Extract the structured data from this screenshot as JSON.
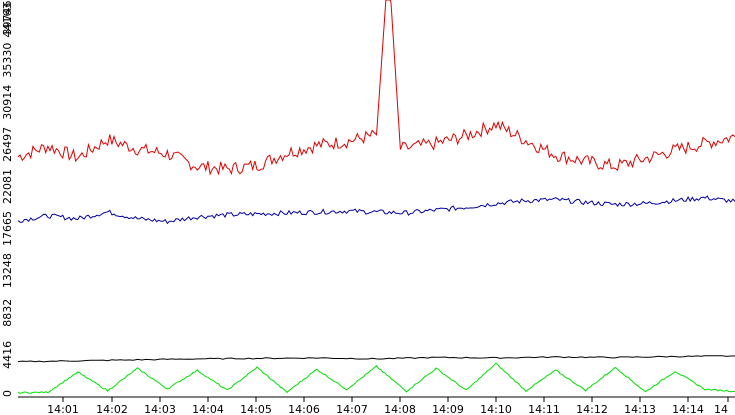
{
  "chart_data": {
    "type": "line",
    "title": "",
    "xlabel": "",
    "ylabel": "",
    "ylim": [
      0,
      39746
    ],
    "x_range_minutes": [
      14.0,
      15.2
    ],
    "x_tick_labels": [
      "14:01",
      "14:02",
      "14:03",
      "14:04",
      "14:05",
      "14:06",
      "14:07",
      "14:08",
      "14:09",
      "14:10",
      "14:11",
      "14:12",
      "14:13",
      "14:14",
      "14"
    ],
    "y_tick_labels": [
      "0",
      "4416",
      "8832",
      "13248",
      "17665",
      "22081",
      "26497",
      "30914",
      "35330",
      "39746",
      "44163"
    ],
    "y_tick_values": [
      0,
      4416,
      8832,
      13248,
      17665,
      22081,
      26497,
      30914,
      35330,
      39746
    ],
    "grid": false,
    "legend": "none",
    "series": [
      {
        "color": "#e00000",
        "points": [
          [
            14.0,
            25200
          ],
          [
            14.05,
            26300
          ],
          [
            14.1,
            25100
          ],
          [
            14.15,
            27000
          ],
          [
            14.2,
            26000
          ],
          [
            14.25,
            25500
          ],
          [
            14.3,
            24200
          ],
          [
            14.35,
            23900
          ],
          [
            14.4,
            24300
          ],
          [
            14.45,
            25600
          ],
          [
            14.5,
            26400
          ],
          [
            14.55,
            26800
          ],
          [
            14.6,
            27500
          ],
          [
            14.62,
            45500
          ],
          [
            14.64,
            26000
          ],
          [
            14.7,
            26600
          ],
          [
            14.75,
            27400
          ],
          [
            14.8,
            28600
          ],
          [
            14.85,
            26900
          ],
          [
            14.9,
            25400
          ],
          [
            14.95,
            24700
          ],
          [
            15.0,
            24200
          ],
          [
            15.05,
            25000
          ],
          [
            15.1,
            25900
          ],
          [
            15.15,
            26600
          ],
          [
            15.2,
            27300
          ]
        ]
      },
      {
        "color": "#0000a0",
        "points": [
          [
            14.0,
            18500
          ],
          [
            14.05,
            19000
          ],
          [
            14.1,
            18700
          ],
          [
            14.15,
            19400
          ],
          [
            14.2,
            18700
          ],
          [
            14.25,
            18400
          ],
          [
            14.3,
            18900
          ],
          [
            14.35,
            19100
          ],
          [
            14.4,
            19200
          ],
          [
            14.45,
            19300
          ],
          [
            14.5,
            19400
          ],
          [
            14.55,
            19500
          ],
          [
            14.6,
            19400
          ],
          [
            14.65,
            19300
          ],
          [
            14.7,
            19600
          ],
          [
            14.75,
            19900
          ],
          [
            14.8,
            20300
          ],
          [
            14.85,
            20600
          ],
          [
            14.9,
            20700
          ],
          [
            14.95,
            20400
          ],
          [
            15.0,
            20200
          ],
          [
            15.05,
            20300
          ],
          [
            15.1,
            20600
          ],
          [
            15.15,
            20900
          ],
          [
            15.2,
            20500
          ]
        ]
      },
      {
        "color": "#000000",
        "points": [
          [
            14.0,
            3700
          ],
          [
            14.1,
            3800
          ],
          [
            14.2,
            3900
          ],
          [
            14.3,
            4000
          ],
          [
            14.4,
            4050
          ],
          [
            14.5,
            4100
          ],
          [
            14.6,
            4000
          ],
          [
            14.7,
            4150
          ],
          [
            14.8,
            4100
          ],
          [
            14.9,
            4200
          ],
          [
            15.0,
            4150
          ],
          [
            15.1,
            4250
          ],
          [
            15.2,
            4300
          ]
        ]
      },
      {
        "color": "#00e000",
        "points": [
          [
            14.0,
            450
          ],
          [
            14.05,
            500
          ],
          [
            14.1,
            2600
          ],
          [
            14.15,
            650
          ],
          [
            14.2,
            3000
          ],
          [
            14.25,
            850
          ],
          [
            14.3,
            2800
          ],
          [
            14.35,
            700
          ],
          [
            14.4,
            3100
          ],
          [
            14.45,
            500
          ],
          [
            14.5,
            2900
          ],
          [
            14.55,
            800
          ],
          [
            14.6,
            3200
          ],
          [
            14.65,
            600
          ],
          [
            14.7,
            3000
          ],
          [
            14.75,
            700
          ],
          [
            14.8,
            3500
          ],
          [
            14.85,
            650
          ],
          [
            14.9,
            2800
          ],
          [
            14.95,
            700
          ],
          [
            15.0,
            3100
          ],
          [
            15.05,
            550
          ],
          [
            15.1,
            2700
          ],
          [
            15.15,
            800
          ],
          [
            15.2,
            600
          ]
        ]
      }
    ]
  }
}
